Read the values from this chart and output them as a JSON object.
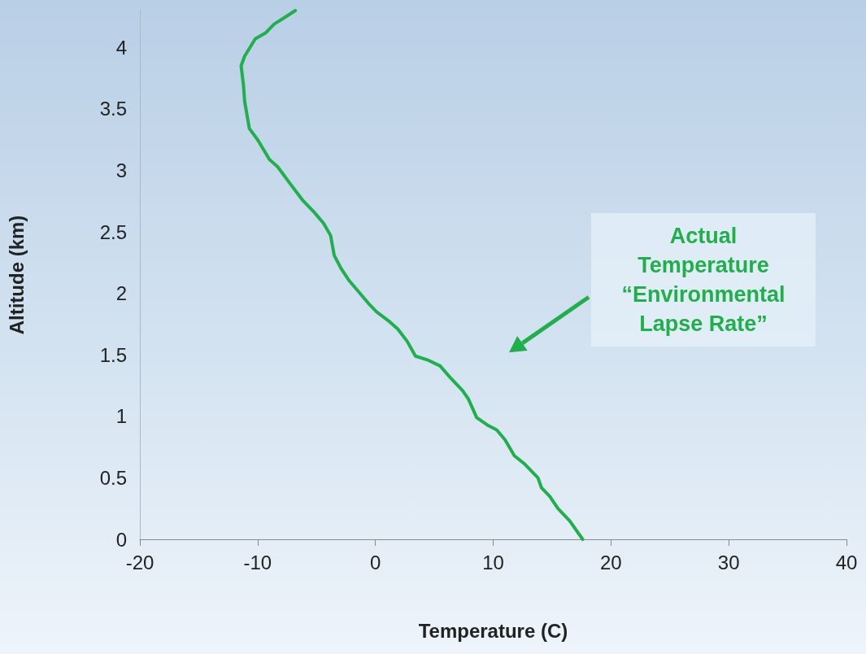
{
  "chart_data": {
    "type": "line",
    "xlabel": "Temperature (C)",
    "ylabel": "Altitude (km)",
    "xlim": [
      -20,
      40
    ],
    "xticks": [
      -20,
      -10,
      0,
      10,
      20,
      30,
      40
    ],
    "ylim": [
      0,
      4.3
    ],
    "yticks": [
      0,
      0.5,
      1,
      1.5,
      2,
      2.5,
      3,
      3.5,
      4
    ],
    "grid": false,
    "marker": "none",
    "line_style": "solid",
    "annotations": [
      "Actual Temperature “Environmental Lapse Rate”"
    ],
    "series": [
      {
        "color": "#1fb04b",
        "x": [
          17.6,
          16.5,
          15.5,
          14.8,
          14.1,
          13.8,
          12.7,
          11.8,
          11.0,
          10.3,
          9.5,
          8.6,
          7.9,
          7.4,
          6.4,
          5.5,
          4.4,
          3.4,
          2.7,
          1.9,
          1.2,
          0.1,
          -0.6,
          -1.3,
          -2.2,
          -2.9,
          -3.5,
          -3.8,
          -4.4,
          -5.2,
          -6.2,
          -7.3,
          -8.3,
          -9.0,
          -10.0,
          -10.7,
          -11.1,
          -11.2,
          -11.4,
          -11.1,
          -10.2,
          -9.3,
          -8.6,
          -7.6,
          -6.8
        ],
        "values": [
          0,
          0.15,
          0.25,
          0.35,
          0.42,
          0.5,
          0.61,
          0.68,
          0.81,
          0.89,
          0.93,
          0.99,
          1.14,
          1.21,
          1.31,
          1.41,
          1.46,
          1.49,
          1.61,
          1.71,
          1.77,
          1.85,
          1.92,
          2.0,
          2.1,
          2.2,
          2.31,
          2.47,
          2.57,
          2.66,
          2.76,
          2.9,
          3.03,
          3.09,
          3.25,
          3.34,
          3.56,
          3.69,
          3.85,
          3.93,
          4.07,
          4.12,
          4.19,
          4.25,
          4.3
        ]
      }
    ]
  }
}
